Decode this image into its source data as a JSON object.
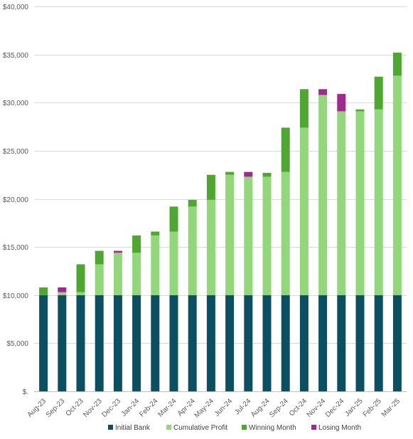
{
  "chart_data": {
    "type": "bar",
    "stacked": true,
    "categories": [
      "Aug-23",
      "Sep-23",
      "Oct-23",
      "Nov-23",
      "Dec-23",
      "Jan-24",
      "Feb-24",
      "Mar-24",
      "Apr-24",
      "May-24",
      "Jun-24",
      "Jul-24",
      "Aug-24",
      "Sep-24",
      "Oct-24",
      "Nov-24",
      "Dec-24",
      "Jan-25",
      "Feb-25",
      "Mar-25"
    ],
    "series": [
      {
        "name": "Initial Bank",
        "color": "#0b4f63",
        "values": [
          10000,
          10000,
          10000,
          10000,
          10000,
          10000,
          10000,
          10000,
          10000,
          10000,
          10000,
          10000,
          10000,
          10000,
          10000,
          10000,
          10000,
          10000,
          10000,
          10000
        ]
      },
      {
        "name": "Cumulative Profit",
        "color": "#92d77a",
        "values": [
          0,
          300,
          300,
          3200,
          4400,
          4400,
          6200,
          6600,
          9200,
          9900,
          12500,
          12300,
          12300,
          12800,
          17400,
          20800,
          19100,
          19100,
          19300,
          22800
        ]
      },
      {
        "name": "Winning Month",
        "color": "#4ea72e",
        "values": [
          800,
          0,
          2900,
          1400,
          0,
          1800,
          400,
          2600,
          700,
          2600,
          300,
          0,
          400,
          4600,
          4000,
          0,
          0,
          200,
          3400,
          2400
        ]
      },
      {
        "name": "Losing Month",
        "color": "#a0288e",
        "values": [
          0,
          500,
          0,
          0,
          200,
          0,
          0,
          0,
          0,
          0,
          0,
          500,
          0,
          0,
          0,
          600,
          1800,
          0,
          0,
          0
        ]
      }
    ],
    "ylim": [
      0,
      40000
    ],
    "yticks": [
      "$.",
      "$5,000",
      "$10,000",
      "$15,000",
      "$20,000",
      "$25,000",
      "$30,000",
      "$35,000",
      "$40,000"
    ],
    "ytick_values": [
      0,
      5000,
      10000,
      15000,
      20000,
      25000,
      30000,
      35000,
      40000
    ],
    "grid": true,
    "legend_position": "bottom",
    "title": "",
    "xlabel": "",
    "ylabel": ""
  }
}
